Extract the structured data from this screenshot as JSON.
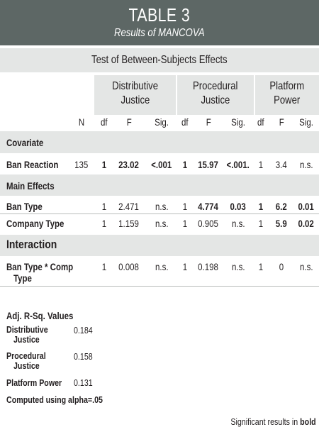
{
  "title": "TABLE 3",
  "subtitle": "Results of MANCOVA",
  "table": {
    "caption": "Test of Between-Subjects Effects",
    "groups": [
      {
        "line1": "Distributive",
        "line2": "Justice"
      },
      {
        "line1": "Procedural",
        "line2": "Justice"
      },
      {
        "line1": "Platform",
        "line2": "Power"
      }
    ],
    "n_label": "N",
    "col_labels": [
      "df",
      "F",
      "Sig."
    ],
    "sections": {
      "covariate": "Covariate",
      "main_effects": "Main Effects",
      "interaction": "Interaction"
    },
    "rows": {
      "ban_reaction": {
        "label": "Ban Reaction",
        "n": "135",
        "cells": [
          {
            "df": "1",
            "f": "23.02",
            "sig": "<.001"
          },
          {
            "df": "1",
            "f": "15.97",
            "sig": "<.001."
          },
          {
            "df": "1",
            "f": "3.4",
            "sig": "n.s."
          }
        ]
      },
      "ban_type": {
        "label": "Ban Type",
        "cells": [
          {
            "df": "1",
            "f": "2.471",
            "sig": "n.s."
          },
          {
            "df": "1",
            "f": "4.774",
            "sig": "0.03"
          },
          {
            "df": "1",
            "f": "6.2",
            "sig": "0.01"
          }
        ]
      },
      "company_type": {
        "label": "Company Type",
        "cells": [
          {
            "df": "1",
            "f": "1.159",
            "sig": "n.s."
          },
          {
            "df": "1",
            "f": "0.905",
            "sig": "n.s."
          },
          {
            "df": "1",
            "f": "5.9",
            "sig": "0.02"
          }
        ]
      },
      "interaction": {
        "label_line1": "Ban Type * Comp",
        "label_line2": "Type",
        "cells": [
          {
            "df": "1",
            "f": "0.008",
            "sig": "n.s."
          },
          {
            "df": "1",
            "f": "0.198",
            "sig": "n.s."
          },
          {
            "df": "1",
            "f": "0",
            "sig": "n.s."
          }
        ]
      }
    }
  },
  "adj": {
    "heading": "Adj. R-Sq. Values",
    "items": [
      {
        "line1": "Distributive",
        "line2": "Justice",
        "value": "0.184"
      },
      {
        "line1": "Procedural",
        "line2": "Justice",
        "value": "0.158"
      },
      {
        "line1": "Platform Power",
        "line2": "",
        "value": "0.131"
      }
    ],
    "alpha_note": "Computed using alpha=.05"
  },
  "footnote": {
    "prefix": "Significant results in ",
    "bold_word": "bold"
  }
}
